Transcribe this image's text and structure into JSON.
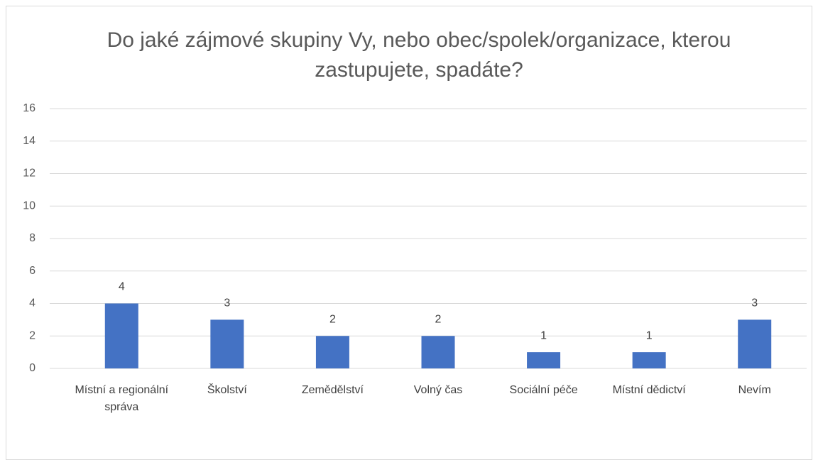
{
  "chart_data": {
    "type": "bar",
    "title": "Do jaké zájmové skupiny Vy, nebo obec/spolek/organizace, kterou zastupujete, spadáte?",
    "categories": [
      "Místní a regionální správa",
      "Školství",
      "Zemědělství",
      "Volný čas",
      "Sociální péče",
      "Místní dědictví",
      "Nevím"
    ],
    "values": [
      4,
      3,
      2,
      2,
      1,
      1,
      3
    ],
    "color": "#4472c4",
    "ylim": [
      0,
      16
    ],
    "yticks": [
      0,
      2,
      4,
      6,
      8,
      10,
      12,
      14,
      16
    ],
    "grid": true
  }
}
